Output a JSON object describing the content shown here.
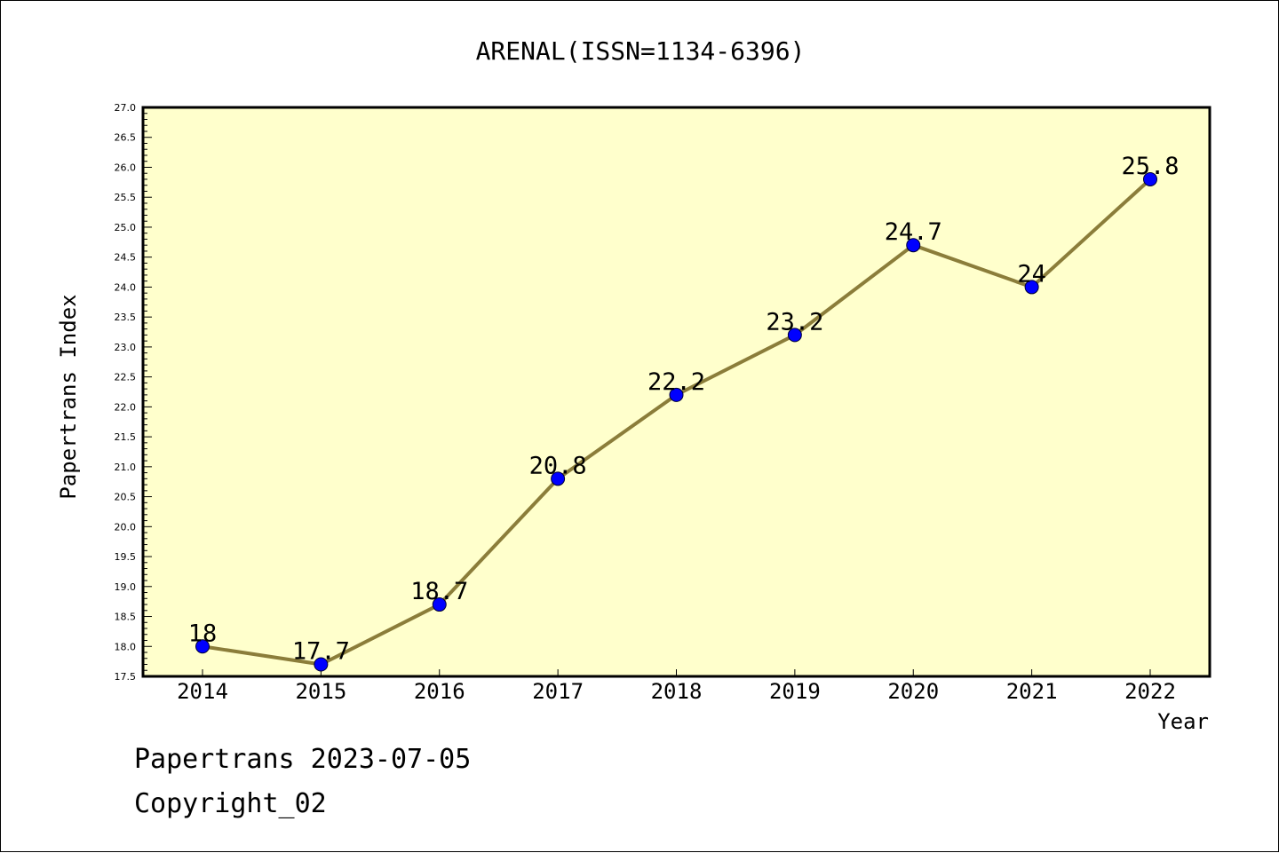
{
  "chart_data": {
    "type": "line",
    "title": "ARENAL(ISSN=1134-6396)",
    "xlabel": "Year",
    "ylabel": "Papertrans Index",
    "categories": [
      "2014",
      "2015",
      "2016",
      "2017",
      "2018",
      "2019",
      "2020",
      "2021",
      "2022"
    ],
    "series": [
      {
        "values": [
          18,
          17.7,
          18.7,
          20.8,
          22.2,
          23.2,
          24.7,
          24,
          25.8
        ],
        "data_labels": [
          "18",
          "17.7",
          "18.7",
          "20.8",
          "22.2",
          "23.2",
          "24.7",
          "24",
          "25.8"
        ]
      }
    ],
    "ylim": [
      17.5,
      27.0
    ],
    "y_ticks": [
      "17.5",
      "18.0",
      "18.5",
      "19.0",
      "19.5",
      "20.0",
      "20.5",
      "21.0",
      "21.5",
      "22.0",
      "22.5",
      "23.0",
      "23.5",
      "24.0",
      "24.5",
      "25.0",
      "25.5",
      "26.0",
      "26.5",
      "27.0"
    ],
    "grid": false,
    "legend": "none",
    "colors": {
      "plot_background": "#ffffcc",
      "line": "#8b7d3a",
      "marker": "#0000ff"
    }
  },
  "footer": {
    "line1": "Papertrans 2023-07-05",
    "line2": "Copyright_02"
  }
}
